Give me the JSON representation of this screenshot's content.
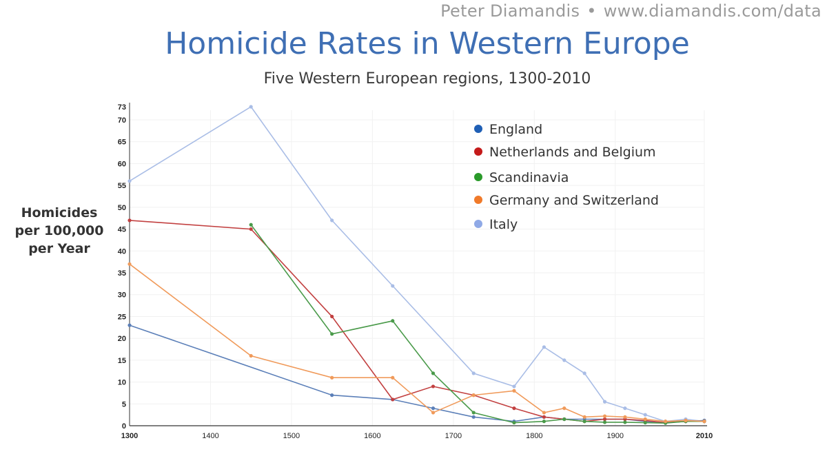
{
  "credit": {
    "author": "Peter Diamandis",
    "separator": "•",
    "url": "www.diamandis.com/data"
  },
  "chart_data": {
    "type": "line",
    "title": "Homicide Rates in Western Europe",
    "subtitle": "Five Western European regions, 1300-2010",
    "ylabel": [
      "Homicides",
      "per 100,000",
      "per Year"
    ],
    "xlabel": "",
    "xlim": [
      1300,
      2010
    ],
    "ylim": [
      0,
      73
    ],
    "x_ticks": [
      1300,
      1400,
      1500,
      1600,
      1700,
      1800,
      1900,
      2010
    ],
    "y_ticks": [
      0,
      5,
      10,
      15,
      20,
      25,
      30,
      35,
      40,
      45,
      50,
      55,
      60,
      65,
      70,
      73
    ],
    "grid": true,
    "legend_position": "top-right",
    "series": [
      {
        "name": "Italy",
        "color": "#a9bde6",
        "x": [
          1300,
          1450,
          1550,
          1625,
          1725,
          1775,
          1812,
          1837,
          1862,
          1887,
          1912,
          1937,
          1962,
          1987,
          2010
        ],
        "y": [
          56,
          73,
          47,
          32,
          12,
          9,
          18,
          15,
          12,
          5.5,
          4,
          2.5,
          1,
          1.5,
          1
        ]
      },
      {
        "name": "England",
        "color": "#5b7fb8",
        "x": [
          1300,
          1550,
          1625,
          1675,
          1725,
          1775,
          1812,
          1837,
          1862,
          1887,
          1912,
          1937,
          1962,
          1987,
          2010
        ],
        "y": [
          23,
          7,
          6,
          4,
          2,
          1,
          2,
          1.5,
          1.5,
          1.5,
          1.5,
          1,
          0.7,
          1,
          1.2
        ]
      },
      {
        "name": "Netherlands and Belgium",
        "color": "#c24040",
        "x": [
          1300,
          1450,
          1550,
          1625,
          1675,
          1725,
          1775,
          1812,
          1837,
          1862,
          1887,
          1912,
          1937,
          1962,
          1987,
          2010
        ],
        "y": [
          47,
          45,
          25,
          6,
          9,
          7,
          4,
          2,
          1.5,
          1,
          1.5,
          1.5,
          1.2,
          0.7,
          1,
          1
        ]
      },
      {
        "name": "Scandinavia",
        "color": "#4a9a4a",
        "x": [
          1450,
          1550,
          1625,
          1675,
          1725,
          1775,
          1812,
          1837,
          1862,
          1887,
          1912,
          1937,
          1962,
          1987,
          2010
        ],
        "y": [
          46,
          21,
          24,
          12,
          3,
          0.7,
          1,
          1.5,
          1,
          0.8,
          0.8,
          0.7,
          0.6,
          1,
          1
        ]
      },
      {
        "name": "Germany and Switzerland",
        "color": "#f09a5a",
        "x": [
          1300,
          1450,
          1550,
          1625,
          1675,
          1725,
          1775,
          1812,
          1837,
          1862,
          1887,
          1912,
          1937,
          1962,
          1987,
          2010
        ],
        "y": [
          37,
          16,
          11,
          11,
          3,
          7,
          8,
          3,
          4,
          2,
          2.2,
          2,
          1.5,
          1,
          1.2,
          1
        ]
      }
    ],
    "legend": [
      {
        "name": "England",
        "color": "#1f5fb5"
      },
      {
        "name": "Netherlands and Belgium",
        "color": "#c41a1a"
      },
      {
        "name": "Scandinavia",
        "color": "#2a9a2a"
      },
      {
        "name": "Germany and Switzerland",
        "color": "#f07a2a"
      },
      {
        "name": "Italy",
        "color": "#8fa9e6"
      }
    ]
  }
}
